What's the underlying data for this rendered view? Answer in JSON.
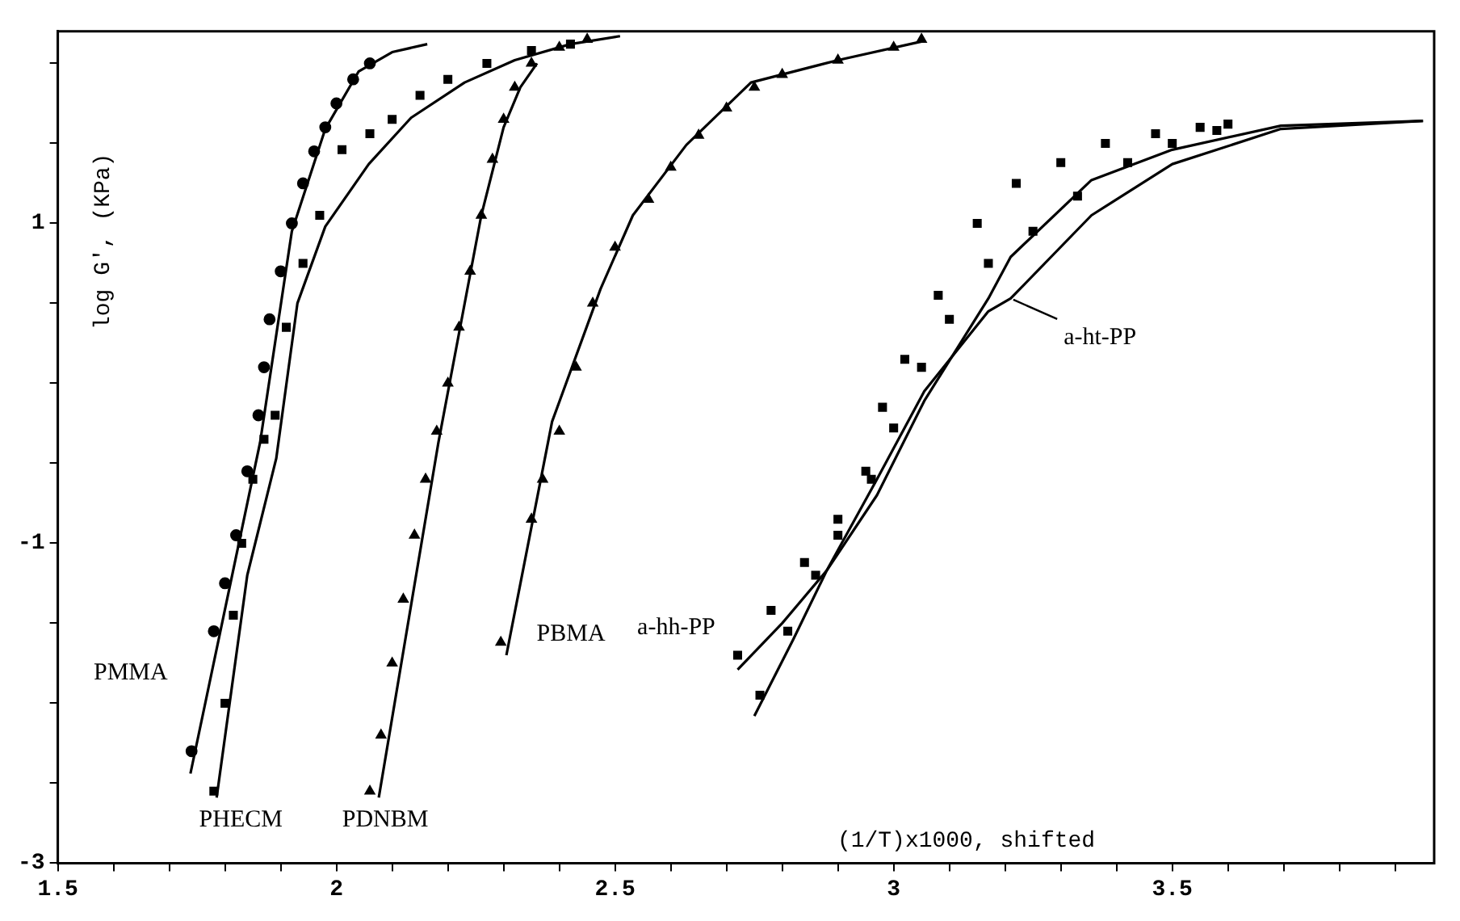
{
  "chart_data": {
    "type": "scatter",
    "xlabel": "(1/T)x1000, shifted",
    "ylabel": "log G', (KPa)",
    "xlim": [
      1.5,
      3.97
    ],
    "ylim": [
      -3,
      2.2
    ],
    "xticks": [
      1.5,
      {
        "value": 1.6,
        "label": null
      },
      {
        "value": 1.7,
        "label": null
      },
      {
        "value": 1.8,
        "label": null
      },
      {
        "value": 1.9,
        "label": null
      },
      2,
      {
        "value": 2.1,
        "label": null
      },
      {
        "value": 2.2,
        "label": null
      },
      {
        "value": 2.3,
        "label": null
      },
      {
        "value": 2.4,
        "label": null
      },
      2.5,
      {
        "value": 2.6,
        "label": null
      },
      {
        "value": 2.7,
        "label": null
      },
      {
        "value": 2.8,
        "label": null
      },
      {
        "value": 2.9,
        "label": null
      },
      3,
      {
        "value": 3.1,
        "label": null
      },
      {
        "value": 3.2,
        "label": null
      },
      {
        "value": 3.3,
        "label": null
      },
      {
        "value": 3.4,
        "label": null
      },
      3.5,
      {
        "value": 3.6,
        "label": null
      },
      {
        "value": 3.7,
        "label": null
      },
      {
        "value": 3.8,
        "label": null
      },
      {
        "value": 3.9,
        "label": null
      }
    ],
    "yticks": [
      -3,
      {
        "value": -2.5,
        "label": null
      },
      {
        "value": -2,
        "label": null
      },
      {
        "value": -1.5,
        "label": null
      },
      -1,
      {
        "value": -0.5,
        "label": null
      },
      {
        "value": 0,
        "label": null
      },
      {
        "value": 0.5,
        "label": null
      },
      1,
      {
        "value": 1.5,
        "label": null
      },
      {
        "value": 2,
        "label": null
      }
    ],
    "grid": false,
    "legend": false,
    "series": [
      {
        "type": "scatter",
        "marker": "circle",
        "color": "#000000",
        "x": [
          1.74,
          1.78,
          1.8,
          1.82,
          1.84,
          1.86,
          1.87,
          1.88,
          1.9,
          1.92,
          1.94,
          1.96,
          1.98,
          2.0,
          2.03,
          2.06
        ],
        "values": [
          -2.3,
          -1.55,
          -1.25,
          -0.95,
          -0.55,
          -0.2,
          0.1,
          0.4,
          0.7,
          1.0,
          1.25,
          1.45,
          1.6,
          1.75,
          1.9,
          2.0
        ]
      },
      {
        "type": "scatter",
        "marker": "square",
        "color": "#000000",
        "x": [
          1.78,
          1.8,
          1.815,
          1.83,
          1.85,
          1.87,
          1.89,
          1.91,
          1.94,
          1.97,
          2.01,
          2.06,
          2.1,
          2.15,
          2.2,
          2.27,
          2.35,
          2.42
        ],
        "values": [
          -2.55,
          -2.0,
          -1.45,
          -1.0,
          -0.6,
          -0.35,
          -0.2,
          0.35,
          0.75,
          1.05,
          1.46,
          1.56,
          1.65,
          1.8,
          1.9,
          2.0,
          2.08,
          2.12
        ]
      },
      {
        "type": "scatter",
        "marker": "triangle",
        "color": "#000000",
        "x": [
          2.06,
          2.08,
          2.1,
          2.12,
          2.14,
          2.16,
          2.18,
          2.2,
          2.22,
          2.24,
          2.26,
          2.28,
          2.3,
          2.32,
          2.35,
          2.4,
          2.45
        ],
        "values": [
          -2.55,
          -2.2,
          -1.75,
          -1.35,
          -0.95,
          -0.6,
          -0.3,
          0.0,
          0.35,
          0.7,
          1.05,
          1.4,
          1.65,
          1.85,
          2.0,
          2.1,
          2.15
        ]
      },
      {
        "type": "scatter",
        "marker": "triangle",
        "color": "#000000",
        "x": [
          2.295,
          2.35,
          2.37,
          2.4,
          2.43,
          2.46,
          2.5,
          2.56,
          2.6,
          2.65,
          2.7,
          2.75,
          2.8,
          2.9,
          3.0,
          3.05
        ],
        "values": [
          -1.62,
          -0.85,
          -0.6,
          -0.3,
          0.1,
          0.5,
          0.85,
          1.15,
          1.35,
          1.55,
          1.72,
          1.85,
          1.93,
          2.02,
          2.1,
          2.15
        ]
      },
      {
        "type": "scatter",
        "marker": "square",
        "color": "#000000",
        "x": [
          2.72,
          2.78,
          2.84,
          2.9,
          2.95,
          2.98,
          3.02,
          3.08,
          3.15,
          3.22,
          3.3,
          3.38,
          3.47,
          3.55,
          3.6
        ],
        "values": [
          -1.7,
          -1.42,
          -1.12,
          -0.85,
          -0.55,
          -0.15,
          0.15,
          0.55,
          1.0,
          1.25,
          1.38,
          1.5,
          1.56,
          1.6,
          1.62
        ]
      },
      {
        "type": "scatter",
        "marker": "square",
        "color": "#000000",
        "x": [
          2.76,
          2.81,
          2.86,
          2.9,
          2.96,
          3.0,
          3.05,
          3.1,
          3.17,
          3.25,
          3.33,
          3.42,
          3.5,
          3.58
        ],
        "values": [
          -1.95,
          -1.55,
          -1.2,
          -0.95,
          -0.6,
          -0.28,
          0.1,
          0.4,
          0.75,
          0.95,
          1.17,
          1.38,
          1.5,
          1.58
        ]
      },
      {
        "type": "line",
        "name": "PMMA",
        "marker": "none",
        "color": "#000000",
        "x": [
          1.738,
          1.863,
          1.92,
          1.98,
          2.04,
          2.1,
          2.163
        ],
        "values": [
          -2.44,
          -0.37,
          0.95,
          1.59,
          1.95,
          2.07,
          2.12
        ]
      },
      {
        "type": "line",
        "name": "PHECM",
        "marker": "none",
        "color": "#000000",
        "x": [
          1.785,
          1.84,
          1.892,
          1.93,
          1.98,
          2.058,
          2.134,
          2.23,
          2.32,
          2.42,
          2.509
        ],
        "values": [
          -2.59,
          -1.2,
          -0.47,
          0.5,
          0.98,
          1.37,
          1.66,
          1.88,
          2.02,
          2.12,
          2.17
        ]
      },
      {
        "type": "line",
        "name": "PDNBM",
        "marker": "none",
        "color": "#000000",
        "x": [
          2.076,
          2.183,
          2.26,
          2.3,
          2.33,
          2.36
        ],
        "values": [
          -2.59,
          -0.37,
          1.05,
          1.6,
          1.85,
          2.0
        ]
      },
      {
        "type": "line",
        "name": "PBMA",
        "marker": "none",
        "color": "#000000",
        "x": [
          2.305,
          2.387,
          2.474,
          2.532,
          2.628,
          2.744,
          2.9,
          3.055
        ],
        "values": [
          -1.7,
          -0.24,
          0.59,
          1.05,
          1.49,
          1.88,
          2.02,
          2.14
        ]
      },
      {
        "type": "line",
        "name": "a-hh-PP",
        "marker": "none",
        "color": "#000000",
        "x": [
          2.72,
          2.8,
          2.88,
          2.97,
          3.055,
          3.17,
          3.21,
          3.355,
          3.5,
          3.695,
          3.95
        ],
        "values": [
          -1.79,
          -1.5,
          -1.17,
          -0.7,
          -0.11,
          0.53,
          0.79,
          1.27,
          1.46,
          1.61,
          1.64
        ]
      },
      {
        "type": "line",
        "name": "a-ht-PP",
        "marker": "none",
        "color": "#000000",
        "x": [
          2.75,
          2.82,
          2.88,
          2.97,
          3.055,
          3.17,
          3.21,
          3.355,
          3.5,
          3.695,
          3.95
        ],
        "values": [
          -2.08,
          -1.6,
          -1.17,
          -0.6,
          -0.05,
          0.45,
          0.53,
          1.05,
          1.37,
          1.59,
          1.64
        ]
      }
    ]
  }
}
